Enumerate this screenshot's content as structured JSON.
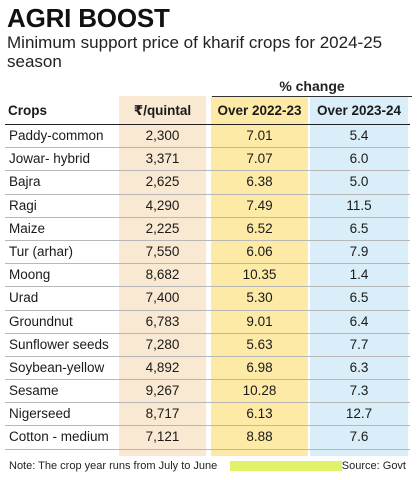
{
  "title": "AGRI BOOST",
  "subtitle": "Minimum support price of kharif crops for 2024-25 season",
  "table": {
    "group_header": "% change",
    "headers": [
      "Crops",
      "₹/quintal",
      "Over 2022-23",
      "Over 2023-24"
    ],
    "rows": [
      {
        "crop": "Paddy-common",
        "price": "2,300",
        "chg_2223": "7.01",
        "chg_2324": "5.4"
      },
      {
        "crop": "Jowar- hybrid",
        "price": "3,371",
        "chg_2223": "7.07",
        "chg_2324": "6.0"
      },
      {
        "crop": "Bajra",
        "price": "2,625",
        "chg_2223": "6.38",
        "chg_2324": "5.0"
      },
      {
        "crop": "Ragi",
        "price": "4,290",
        "chg_2223": "7.49",
        "chg_2324": "11.5"
      },
      {
        "crop": "Maize",
        "price": "2,225",
        "chg_2223": "6.52",
        "chg_2324": "6.5"
      },
      {
        "crop": "Tur (arhar)",
        "price": "7,550",
        "chg_2223": "6.06",
        "chg_2324": "7.9"
      },
      {
        "crop": "Moong",
        "price": "8,682",
        "chg_2223": "10.35",
        "chg_2324": "1.4"
      },
      {
        "crop": "Urad",
        "price": "7,400",
        "chg_2223": "5.30",
        "chg_2324": "6.5"
      },
      {
        "crop": "Groundnut",
        "price": "6,783",
        "chg_2223": "9.01",
        "chg_2324": "6.4"
      },
      {
        "crop": "Sunflower seeds",
        "price": "7,280",
        "chg_2223": "5.63",
        "chg_2324": "7.7"
      },
      {
        "crop": "Soybean-yellow",
        "price": "4,892",
        "chg_2223": "6.98",
        "chg_2324": "6.3"
      },
      {
        "crop": "Sesame",
        "price": "9,267",
        "chg_2223": "10.28",
        "chg_2324": "7.3"
      },
      {
        "crop": "Nigerseed",
        "price": "8,717",
        "chg_2223": "6.13",
        "chg_2324": "12.7"
      },
      {
        "crop": "Cotton - medium",
        "price": "7,121",
        "chg_2223": "8.88",
        "chg_2324": "7.6"
      }
    ]
  },
  "footer": {
    "note": "Note: The crop year runs from July to June",
    "source": "Source: Govt"
  },
  "colors": {
    "price_column": "#f9e8d2",
    "change_2223_column": "#fdeaa7",
    "change_2324_column": "#d9eef8",
    "footer_highlight": "#e2f16a"
  }
}
